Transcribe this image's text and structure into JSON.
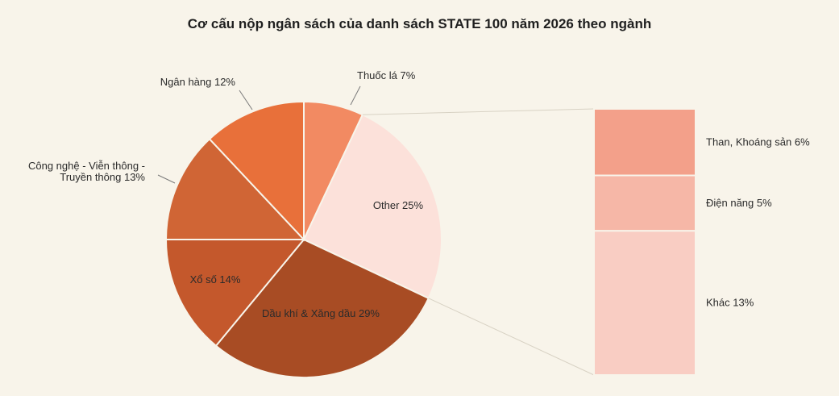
{
  "chart_data": {
    "type": "pie",
    "title": "Cơ cấu nộp ngân sách của danh sách STATE 100 năm 2026 theo ngành",
    "slices": [
      {
        "label": "Thuốc lá 7%",
        "value": 7,
        "color": "#f28a62"
      },
      {
        "label": "Other 25%",
        "value": 25,
        "color": "#fce1da"
      },
      {
        "label": "Dầu khí & Xăng dầu 29%",
        "value": 29,
        "color": "#a84c24"
      },
      {
        "label": "Xổ số 14%",
        "value": 14,
        "color": "#c4582c"
      },
      {
        "label": "Công nghệ - Viễn thông - Truyền thông 13%",
        "label_lines": [
          "Công nghệ - Viễn thông -",
          "Truyền thông 13%"
        ],
        "value": 13,
        "color": "#d06535"
      },
      {
        "label": "Ngân hàng 12%",
        "value": 12,
        "color": "#e8703a"
      }
    ],
    "other_breakdown": [
      {
        "label": "Than, Khoáng sản 6%",
        "value": 6,
        "color": "#f3a08a"
      },
      {
        "label": "Điện năng 5%",
        "value": 5,
        "color": "#f6b7a7"
      },
      {
        "label": "Khác 13%",
        "value": 13,
        "color": "#f9cdc3"
      }
    ]
  }
}
